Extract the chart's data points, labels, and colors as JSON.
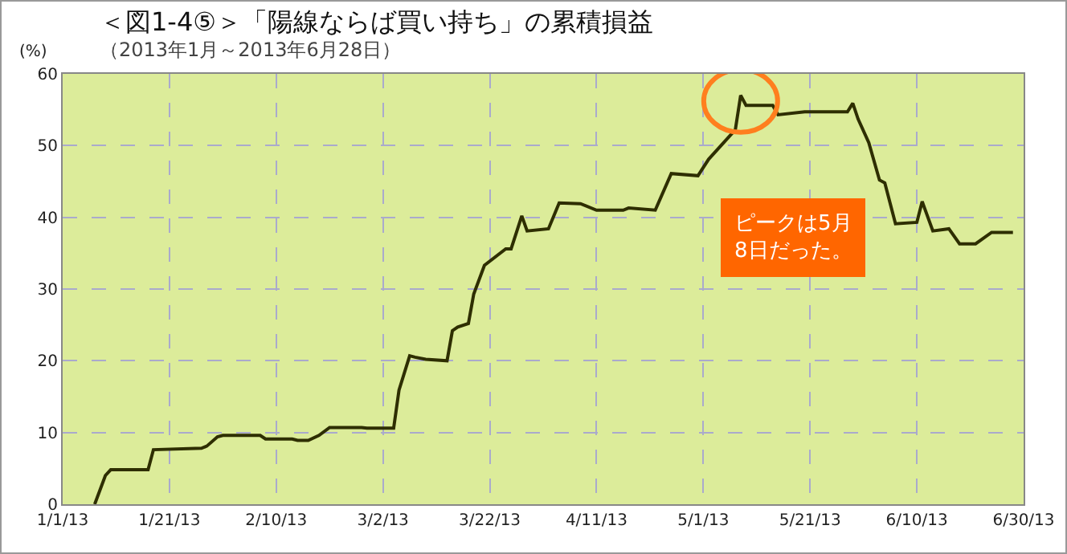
{
  "chart_data": {
    "type": "line",
    "title": "＜図1-4⑤＞「陽線ならば買い持ち」の累積損益",
    "subtitle": "（2013年1月～2013年6月28日）",
    "ylabel": "(%)",
    "x": [
      "2013-01-07",
      "2013-01-09",
      "2013-01-10",
      "2013-01-17",
      "2013-01-18",
      "2013-01-27",
      "2013-01-28",
      "2013-01-30",
      "2013-01-31",
      "2013-02-07",
      "2013-02-08",
      "2013-02-13",
      "2013-02-14",
      "2013-02-16",
      "2013-02-18",
      "2013-02-20",
      "2013-02-26",
      "2013-02-27",
      "2013-03-04",
      "2013-03-05",
      "2013-03-07",
      "2013-03-08",
      "2013-03-10",
      "2013-03-14",
      "2013-03-15",
      "2013-03-16",
      "2013-03-18",
      "2013-03-19",
      "2013-03-21",
      "2013-03-25",
      "2013-03-26",
      "2013-03-28",
      "2013-03-29",
      "2013-04-02",
      "2013-04-04",
      "2013-04-08",
      "2013-04-11",
      "2013-04-16",
      "2013-04-17",
      "2013-04-22",
      "2013-04-25",
      "2013-04-30",
      "2013-05-02",
      "2013-05-07",
      "2013-05-08",
      "2013-05-09",
      "2013-05-14",
      "2013-05-15",
      "2013-05-20",
      "2013-05-28",
      "2013-05-29",
      "2013-05-30",
      "2013-06-01",
      "2013-06-03",
      "2013-06-04",
      "2013-06-06",
      "2013-06-10",
      "2013-06-11",
      "2013-06-13",
      "2013-06-16",
      "2013-06-18",
      "2013-06-21",
      "2013-06-24",
      "2013-06-28"
    ],
    "series": [
      {
        "color": "#2e2e00",
        "values": [
          0,
          4,
          4.8,
          4.8,
          7.6,
          7.8,
          8.1,
          9.4,
          9.6,
          9.6,
          9.1,
          9.1,
          8.9,
          8.9,
          9.6,
          10.7,
          10.7,
          10.6,
          10.6,
          15.9,
          20.7,
          20.5,
          20.2,
          20,
          24.2,
          24.7,
          25.2,
          29.3,
          33.3,
          35.6,
          35.6,
          40.2,
          38.1,
          38.4,
          42,
          41.9,
          41,
          41,
          41.3,
          41,
          46.1,
          45.8,
          48.1,
          52.2,
          57,
          55.6,
          55.6,
          54.3,
          54.7,
          54.7,
          55.9,
          53.7,
          50.4,
          45.2,
          44.8,
          39.1,
          39.3,
          42.2,
          38.1,
          38.4,
          36.3,
          36.3,
          37.9,
          37.9
        ]
      }
    ],
    "xlim": [
      "2013-01-01",
      "2013-06-30"
    ],
    "xticks": [
      {
        "value": "2013-01-01",
        "label": "1/1/13"
      },
      {
        "value": "2013-01-21",
        "label": "1/21/13"
      },
      {
        "value": "2013-02-10",
        "label": "2/10/13"
      },
      {
        "value": "2013-03-02",
        "label": "3/2/13"
      },
      {
        "value": "2013-03-22",
        "label": "3/22/13"
      },
      {
        "value": "2013-04-11",
        "label": "4/11/13"
      },
      {
        "value": "2013-05-01",
        "label": "5/1/13"
      },
      {
        "value": "2013-05-21",
        "label": "5/21/13"
      },
      {
        "value": "2013-06-10",
        "label": "6/10/13"
      },
      {
        "value": "2013-06-30",
        "label": "6/30/13"
      }
    ],
    "ylim": [
      0,
      60
    ],
    "yticks": [
      0,
      10,
      20,
      30,
      40,
      50,
      60
    ],
    "grid": true,
    "marker": "none",
    "line_style": "solid",
    "annotations": [
      "ピークは5月\n8日だった。"
    ]
  }
}
